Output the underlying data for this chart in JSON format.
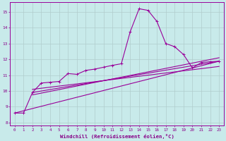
{
  "bg_color": "#c8eaea",
  "grid_color": "#b0cccc",
  "line_color": "#990099",
  "xlabel": "Windchill (Refroidissement éolien,°C)",
  "xlabel_color": "#880088",
  "tick_color": "#880088",
  "xlim": [
    -0.5,
    23.5
  ],
  "ylim": [
    7.8,
    15.6
  ],
  "yticks": [
    8,
    9,
    10,
    11,
    12,
    13,
    14,
    15
  ],
  "xticks": [
    0,
    1,
    2,
    3,
    4,
    5,
    6,
    7,
    8,
    9,
    10,
    11,
    12,
    13,
    14,
    15,
    16,
    17,
    18,
    19,
    20,
    21,
    22,
    23
  ],
  "curve1_x": [
    0,
    1,
    2,
    3,
    4,
    5,
    6,
    7,
    8,
    9,
    10,
    11,
    12,
    13,
    14,
    15,
    16,
    17,
    18,
    19,
    20,
    21,
    22,
    23
  ],
  "curve1_y": [
    8.6,
    8.6,
    9.9,
    10.5,
    10.55,
    10.6,
    11.1,
    11.05,
    11.3,
    11.38,
    11.5,
    11.62,
    11.72,
    13.75,
    15.2,
    15.1,
    14.4,
    13.0,
    12.8,
    12.3,
    11.45,
    11.8,
    11.85,
    11.88
  ],
  "line2_x": [
    0,
    23
  ],
  "line2_y": [
    8.6,
    11.88
  ],
  "line3_x": [
    2,
    23
  ],
  "line3_y": [
    9.9,
    11.88
  ],
  "line4_x": [
    2,
    23
  ],
  "line4_y": [
    9.75,
    12.1
  ],
  "line5_x": [
    2,
    23
  ],
  "line5_y": [
    10.1,
    11.55
  ]
}
